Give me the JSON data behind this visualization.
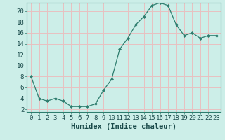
{
  "x": [
    0,
    1,
    2,
    3,
    4,
    5,
    6,
    7,
    8,
    9,
    10,
    11,
    12,
    13,
    14,
    15,
    16,
    17,
    18,
    19,
    20,
    21,
    22,
    23
  ],
  "y": [
    8,
    4,
    3.5,
    4,
    3.5,
    2.5,
    2.5,
    2.5,
    3,
    5.5,
    7.5,
    13,
    15,
    17.5,
    19,
    21,
    21.5,
    21,
    17.5,
    15.5,
    16,
    15,
    15.5,
    15.5
  ],
  "line_color": "#2e7d6e",
  "marker": "D",
  "marker_size": 2.0,
  "bg_color": "#cceee8",
  "grid_color": "#e8c0c0",
  "xlabel": "Humidex (Indice chaleur)",
  "xlim": [
    -0.5,
    23.5
  ],
  "ylim": [
    1.5,
    21.5
  ],
  "yticks": [
    2,
    4,
    6,
    8,
    10,
    12,
    14,
    16,
    18,
    20
  ],
  "xticks": [
    0,
    1,
    2,
    3,
    4,
    5,
    6,
    7,
    8,
    9,
    10,
    11,
    12,
    13,
    14,
    15,
    16,
    17,
    18,
    19,
    20,
    21,
    22,
    23
  ],
  "tick_fontsize": 6.5,
  "xlabel_fontsize": 7.5
}
